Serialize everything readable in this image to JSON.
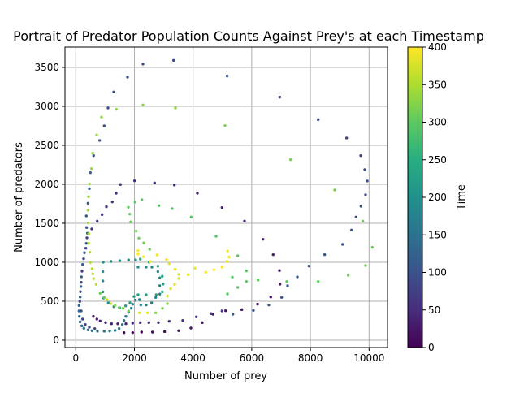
{
  "chart_data": {
    "type": "scatter",
    "title": "Portrait of Predator Population Counts Against Prey's at each Timestamp",
    "xlabel": "Number of prey",
    "ylabel": "Number of predators",
    "xlim": [
      -368,
      10629
    ],
    "ylim": [
      -94,
      3760
    ],
    "xticks": [
      0,
      2000,
      4000,
      6000,
      8000,
      10000
    ],
    "yticks": [
      0,
      500,
      1000,
      1500,
      2000,
      2500,
      3000,
      3500
    ],
    "grid": true,
    "colorbar": {
      "label": "Time",
      "range": [
        0,
        400
      ],
      "ticks": [
        0,
        50,
        100,
        150,
        200,
        250,
        300,
        350,
        400
      ],
      "colormap": "viridis"
    },
    "points_format": [
      "prey",
      "predators",
      "time"
    ],
    "points": [
      [
        1645,
        97,
        5
      ],
      [
        1939,
        97,
        7
      ],
      [
        2244,
        104,
        9
      ],
      [
        2615,
        104,
        11
      ],
      [
        3030,
        111,
        13
      ],
      [
        3510,
        122,
        15
      ],
      [
        3925,
        156,
        17
      ],
      [
        4313,
        226,
        19
      ],
      [
        4680,
        333,
        21
      ],
      [
        5108,
        378,
        23
      ],
      [
        5662,
        392,
        25
      ],
      [
        6197,
        462,
        27
      ],
      [
        6648,
        555,
        29
      ],
      [
        6963,
        719,
        31
      ],
      [
        6945,
        893,
        33
      ],
      [
        6731,
        1097,
        35
      ],
      [
        6381,
        1295,
        37
      ],
      [
        5753,
        1528,
        40
      ],
      [
        4986,
        1701,
        43
      ],
      [
        4147,
        1885,
        46
      ],
      [
        3363,
        1990,
        49
      ],
      [
        2687,
        2017,
        52
      ],
      [
        2005,
        2045,
        55
      ],
      [
        1524,
        1997,
        58
      ],
      [
        1377,
        1885,
        60
      ],
      [
        1247,
        1774,
        62
      ],
      [
        1044,
        1712,
        64
      ],
      [
        897,
        1611,
        66
      ],
      [
        731,
        1528,
        68
      ],
      [
        546,
        1427,
        70
      ],
      [
        380,
        1313,
        72
      ],
      [
        343,
        1180,
        74
      ],
      [
        269,
        1045,
        76
      ],
      [
        213,
        885,
        78
      ],
      [
        186,
        743,
        80
      ],
      [
        158,
        622,
        82
      ],
      [
        139,
        497,
        84
      ],
      [
        186,
        375,
        86
      ],
      [
        233,
        271,
        88
      ],
      [
        324,
        201,
        90
      ],
      [
        463,
        167,
        92
      ],
      [
        648,
        149,
        94
      ],
      [
        601,
        305,
        30
      ],
      [
        720,
        271,
        32
      ],
      [
        831,
        247,
        34
      ],
      [
        1017,
        226,
        36
      ],
      [
        1219,
        211,
        38
      ],
      [
        1432,
        211,
        40
      ],
      [
        1709,
        211,
        42
      ],
      [
        1939,
        219,
        44
      ],
      [
        2199,
        226,
        46
      ],
      [
        2493,
        226,
        48
      ],
      [
        2817,
        226,
        50
      ],
      [
        3186,
        243,
        52
      ],
      [
        3648,
        253,
        54
      ],
      [
        4110,
        299,
        56
      ],
      [
        4618,
        341,
        58
      ],
      [
        4986,
        375,
        60
      ],
      [
        463,
        1944,
        110
      ],
      [
        499,
        2149,
        108
      ],
      [
        609,
        2368,
        106
      ],
      [
        814,
        2563,
        104
      ],
      [
        970,
        2750,
        102
      ],
      [
        1100,
        2979,
        100
      ],
      [
        1294,
        3184,
        98
      ],
      [
        1765,
        3375,
        96
      ],
      [
        2291,
        3542,
        94
      ],
      [
        3335,
        3590,
        92
      ],
      [
        5163,
        3389,
        90
      ],
      [
        6953,
        3118,
        88
      ],
      [
        8266,
        2830,
        86
      ],
      [
        9235,
        2594,
        84
      ],
      [
        9715,
        2368,
        86
      ],
      [
        9853,
        2188,
        88
      ],
      [
        9936,
        2042,
        90
      ],
      [
        9881,
        1865,
        92
      ],
      [
        9723,
        1719,
        94
      ],
      [
        9557,
        1580,
        96
      ],
      [
        9402,
        1413,
        98
      ],
      [
        9097,
        1229,
        100
      ],
      [
        8487,
        1097,
        102
      ],
      [
        7951,
        951,
        104
      ],
      [
        7554,
        812,
        106
      ],
      [
        7222,
        698,
        108
      ],
      [
        7019,
        549,
        110
      ],
      [
        6584,
        451,
        112
      ],
      [
        6058,
        382,
        114
      ],
      [
        5357,
        333,
        116
      ],
      [
        416,
        1757,
        112
      ],
      [
        360,
        1594,
        114
      ],
      [
        371,
        1445,
        116
      ],
      [
        399,
        1372,
        118
      ],
      [
        360,
        1243,
        120
      ],
      [
        296,
        1122,
        122
      ],
      [
        233,
        972,
        124
      ],
      [
        194,
        813,
        126
      ],
      [
        177,
        688,
        128
      ],
      [
        150,
        555,
        130
      ],
      [
        111,
        445,
        132
      ],
      [
        111,
        375,
        134
      ],
      [
        122,
        305,
        136
      ],
      [
        150,
        236,
        138
      ],
      [
        205,
        184,
        140
      ],
      [
        277,
        153,
        142
      ],
      [
        416,
        132,
        144
      ],
      [
        554,
        122,
        146
      ],
      [
        740,
        115,
        148
      ],
      [
        970,
        115,
        150
      ],
      [
        1155,
        118,
        152
      ],
      [
        1340,
        125,
        154
      ],
      [
        1478,
        149,
        156
      ],
      [
        1589,
        201,
        158
      ],
      [
        1645,
        253,
        160
      ],
      [
        1709,
        305,
        162
      ],
      [
        1801,
        357,
        164
      ],
      [
        1894,
        409,
        166
      ],
      [
        1939,
        461,
        168
      ],
      [
        2033,
        514,
        170
      ],
      [
        2172,
        521,
        172
      ],
      [
        2216,
        451,
        174
      ],
      [
        2402,
        451,
        176
      ],
      [
        2587,
        479,
        178
      ],
      [
        2725,
        549,
        180
      ],
      [
        2864,
        591,
        182
      ],
      [
        2864,
        700,
        184
      ],
      [
        2864,
        800,
        186
      ],
      [
        2800,
        880,
        188
      ],
      [
        2595,
        937,
        190
      ],
      [
        2400,
        937,
        192
      ],
      [
        2124,
        937,
        194
      ],
      [
        2041,
        1030,
        196
      ],
      [
        1800,
        1030,
        198
      ],
      [
        1500,
        1020,
        200
      ],
      [
        1200,
        1010,
        202
      ],
      [
        936,
        1000,
        204
      ],
      [
        924,
        880,
        206
      ],
      [
        924,
        760,
        208
      ],
      [
        924,
        620,
        210
      ],
      [
        950,
        540,
        212
      ],
      [
        1108,
        479,
        214
      ],
      [
        1300,
        430,
        216
      ],
      [
        1500,
        415,
        218
      ],
      [
        1700,
        440,
        220
      ],
      [
        1848,
        480,
        222
      ],
      [
        1987,
        560,
        224
      ],
      [
        2124,
        583,
        226
      ],
      [
        2400,
        583,
        228
      ],
      [
        2743,
        583,
        230
      ],
      [
        2950,
        620,
        232
      ],
      [
        2980,
        720,
        234
      ],
      [
        2950,
        820,
        236
      ],
      [
        2800,
        950,
        238
      ],
      [
        2500,
        1000,
        240
      ],
      [
        2200,
        1040,
        242
      ],
      [
        2291,
        3017,
        330
      ],
      [
        3399,
        2979,
        328
      ],
      [
        1385,
        2962,
        332
      ],
      [
        878,
        2861,
        334
      ],
      [
        712,
        2632,
        336
      ],
      [
        573,
        2399,
        338
      ],
      [
        537,
        2201,
        340
      ],
      [
        471,
        2003,
        342
      ],
      [
        435,
        1840,
        344
      ],
      [
        416,
        1667,
        346
      ],
      [
        426,
        1503,
        348
      ],
      [
        443,
        1365,
        350
      ],
      [
        443,
        1243,
        352
      ],
      [
        482,
        1128,
        354
      ],
      [
        499,
        997,
        356
      ],
      [
        554,
        917,
        358
      ],
      [
        582,
        851,
        360
      ],
      [
        609,
        789,
        362
      ],
      [
        693,
        716,
        364
      ],
      [
        831,
        601,
        310
      ],
      [
        970,
        549,
        312
      ],
      [
        1063,
        521,
        366
      ],
      [
        1202,
        469,
        368
      ],
      [
        1340,
        445,
        314
      ],
      [
        1478,
        417,
        316
      ],
      [
        1617,
        409,
        318
      ],
      [
        1801,
        375,
        320
      ],
      [
        2172,
        351,
        380
      ],
      [
        2449,
        351,
        385
      ],
      [
        2725,
        351,
        322
      ],
      [
        2956,
        409,
        324
      ],
      [
        3122,
        469,
        326
      ],
      [
        3122,
        566,
        370
      ],
      [
        3233,
        660,
        375
      ],
      [
        3371,
        716,
        378
      ],
      [
        3510,
        792,
        380
      ],
      [
        3833,
        840,
        385
      ],
      [
        4066,
        924,
        388
      ],
      [
        4432,
        872,
        392
      ],
      [
        4709,
        903,
        395
      ],
      [
        4986,
        937,
        398
      ],
      [
        3510,
        844,
        382
      ],
      [
        3390,
        910,
        386
      ],
      [
        3186,
        982,
        390
      ],
      [
        3094,
        1034,
        392
      ],
      [
        2770,
        1094,
        394
      ],
      [
        2540,
        1007,
        396
      ],
      [
        2310,
        1070,
        398
      ],
      [
        2124,
        1149,
        400
      ],
      [
        2124,
        1104,
        399
      ],
      [
        2022,
        1771,
        300
      ],
      [
        2255,
        1802,
        298
      ],
      [
        1792,
        1705,
        302
      ],
      [
        1839,
        1618,
        304
      ],
      [
        1875,
        1518,
        306
      ],
      [
        2061,
        1399,
        308
      ],
      [
        2152,
        1309,
        310
      ],
      [
        2319,
        1247,
        312
      ],
      [
        2521,
        1167,
        314
      ],
      [
        2836,
        1726,
        296
      ],
      [
        3288,
        1688,
        294
      ],
      [
        3934,
        1580,
        292
      ],
      [
        4784,
        1333,
        290
      ],
      [
        5089,
        2753,
        320
      ],
      [
        7323,
        2316,
        318
      ],
      [
        8828,
        1927,
        316
      ],
      [
        9789,
        1528,
        314
      ],
      [
        10111,
        1191,
        312
      ],
      [
        9881,
        958,
        310
      ],
      [
        9291,
        833,
        308
      ],
      [
        8266,
        753,
        306
      ],
      [
        7194,
        753,
        304
      ],
      [
        6216,
        771,
        302
      ],
      [
        5817,
        753,
        300
      ],
      [
        5817,
        889,
        296
      ],
      [
        5338,
        809,
        298
      ],
      [
        5524,
        677,
        294
      ],
      [
        5172,
        594,
        292
      ],
      [
        5524,
        1083,
        300
      ],
      [
        5180,
        1143,
        398
      ],
      [
        5227,
        1066,
        396
      ],
      [
        5152,
        1010,
        394
      ]
    ]
  }
}
